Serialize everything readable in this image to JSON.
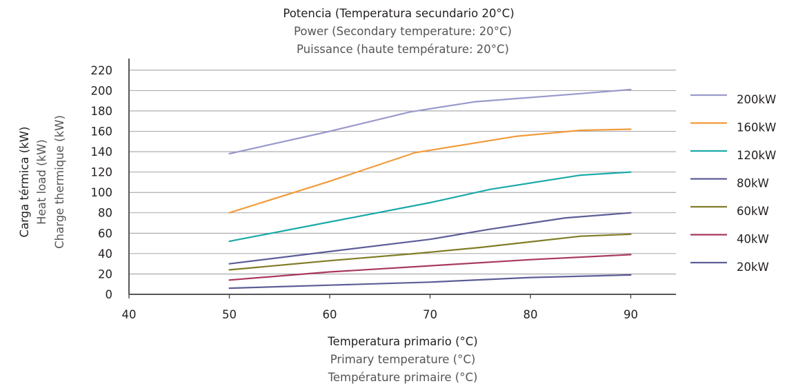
{
  "chart_data": {
    "type": "line",
    "title": "Potencia (Temperatura secundario 20°C)",
    "subtitle_1": "Power (Secondary temperature: 20°C)",
    "subtitle_2": "Puissance (haute température: 20°C)",
    "xlabel": "Temperatura primario (°C)",
    "xlabel_2": "Primary temperature (°C)",
    "xlabel_3": "Température primaire (°C)",
    "ylabel": "Carga térmica (kW)",
    "ylabel_2": "Heat load (kW)",
    "ylabel_3": "Charge thermique (kW)",
    "xlim": [
      40,
      95
    ],
    "ylim": [
      0,
      230
    ],
    "x_ticks": [
      "40",
      "50",
      "60",
      "70",
      "80",
      "90"
    ],
    "y_ticks": [
      "0",
      "20",
      "40",
      "60",
      "80",
      "100",
      "120",
      "140",
      "160",
      "180",
      "200",
      "220"
    ],
    "grid": "horizontal",
    "legend_position": "right",
    "series": [
      {
        "name": "200kW",
        "color": "#9999cc",
        "points": [
          [
            50,
            138
          ],
          [
            60,
            160
          ],
          [
            68,
            179
          ],
          [
            74.5,
            189
          ],
          [
            85,
            197
          ],
          [
            90,
            201
          ]
        ]
      },
      {
        "name": "160kW",
        "color": "#f39a3a",
        "points": [
          [
            50,
            80
          ],
          [
            60,
            111
          ],
          [
            68.5,
            139
          ],
          [
            78.5,
            155
          ],
          [
            85,
            161
          ],
          [
            90,
            162
          ]
        ]
      },
      {
        "name": "120kW",
        "color": "#1aa9a8",
        "points": [
          [
            50,
            52
          ],
          [
            60,
            71
          ],
          [
            70,
            90
          ],
          [
            76,
            103
          ],
          [
            85,
            117
          ],
          [
            90,
            120
          ]
        ]
      },
      {
        "name": "80kW",
        "color": "#5c5d96",
        "points": [
          [
            50,
            30
          ],
          [
            60,
            42
          ],
          [
            70,
            54
          ],
          [
            76,
            64
          ],
          [
            83.5,
            75
          ],
          [
            90,
            80
          ]
        ]
      },
      {
        "name": "60kW",
        "color": "#7f7c26",
        "points": [
          [
            50,
            24
          ],
          [
            60,
            33
          ],
          [
            68.5,
            40
          ],
          [
            75,
            46
          ],
          [
            85,
            57
          ],
          [
            90,
            59
          ]
        ]
      },
      {
        "name": "40kW",
        "color": "#a8385d",
        "points": [
          [
            50,
            14
          ],
          [
            60,
            22
          ],
          [
            70,
            28
          ],
          [
            80,
            34
          ],
          [
            90,
            39
          ]
        ]
      },
      {
        "name": "20kW",
        "color": "#5c5d96",
        "points": [
          [
            50,
            6
          ],
          [
            60,
            9
          ],
          [
            70,
            12
          ],
          [
            80,
            16.5
          ],
          [
            90,
            19
          ]
        ]
      }
    ]
  }
}
